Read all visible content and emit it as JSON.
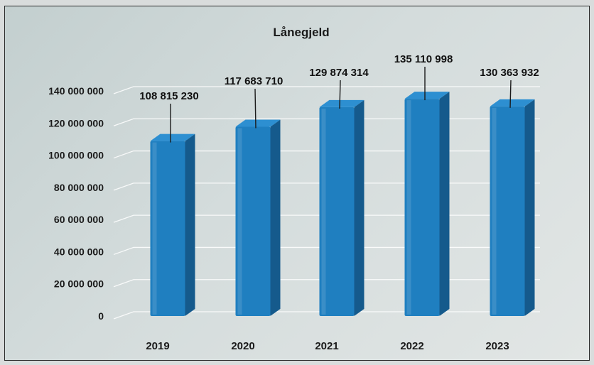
{
  "chart_data": {
    "type": "bar",
    "title": "Lånegjeld",
    "categories": [
      "2019",
      "2020",
      "2021",
      "2022",
      "2023"
    ],
    "values": [
      108815230,
      117683710,
      129874314,
      135110998,
      130363932
    ],
    "value_labels": [
      "108 815 230",
      "117 683 710",
      "129 874 314",
      "135 110 998",
      "130 363 932"
    ],
    "ylim": [
      0,
      140000000
    ],
    "yticks": [
      0,
      20000000,
      40000000,
      60000000,
      80000000,
      100000000,
      120000000,
      140000000
    ],
    "ytick_labels": [
      "0",
      "20 000 000",
      "40 000 000",
      "60 000 000",
      "80 000 000",
      "100 000 000",
      "120 000 000",
      "140 000 000"
    ],
    "grid": true,
    "style": "3d-column",
    "bar_color": "#1f7fc0",
    "bar_side_color": "#155a8c",
    "bar_top_color": "#2d8fd1"
  }
}
